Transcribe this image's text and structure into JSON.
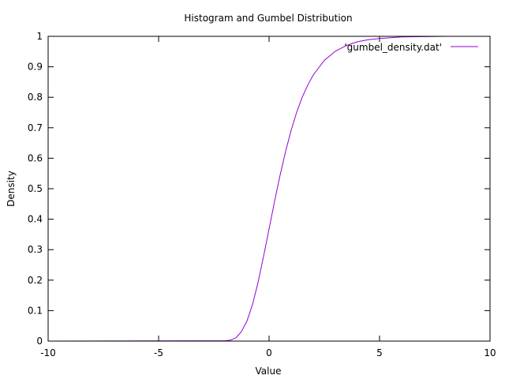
{
  "chart_data": {
    "type": "line",
    "title": "Histogram and Gumbel Distribution",
    "xlabel": "Value",
    "ylabel": "Density",
    "xlim": [
      -10,
      10
    ],
    "ylim": [
      0,
      1
    ],
    "xticks": [
      -10,
      -5,
      0,
      5,
      10
    ],
    "yticks": [
      0,
      0.1,
      0.2,
      0.3,
      0.4,
      0.5,
      0.6,
      0.7,
      0.8,
      0.9,
      1
    ],
    "grid": false,
    "legend_position": "top-right",
    "series": [
      {
        "name": "'gumbel_density.dat'",
        "color": "#9400d3",
        "x": [
          -10,
          -2,
          -1.75,
          -1.5,
          -1.25,
          -1,
          -0.75,
          -0.5,
          -0.25,
          0,
          0.25,
          0.5,
          0.75,
          1,
          1.25,
          1.5,
          1.75,
          2,
          2.5,
          3,
          3.5,
          4,
          4.5,
          5,
          6,
          7,
          8,
          9.5
        ],
        "y": [
          0,
          0.001,
          0.003,
          0.011,
          0.031,
          0.066,
          0.12,
          0.192,
          0.278,
          0.368,
          0.459,
          0.545,
          0.623,
          0.692,
          0.751,
          0.8,
          0.84,
          0.873,
          0.921,
          0.951,
          0.97,
          0.982,
          0.989,
          0.993,
          0.998,
          0.999,
          1,
          1
        ]
      }
    ]
  }
}
